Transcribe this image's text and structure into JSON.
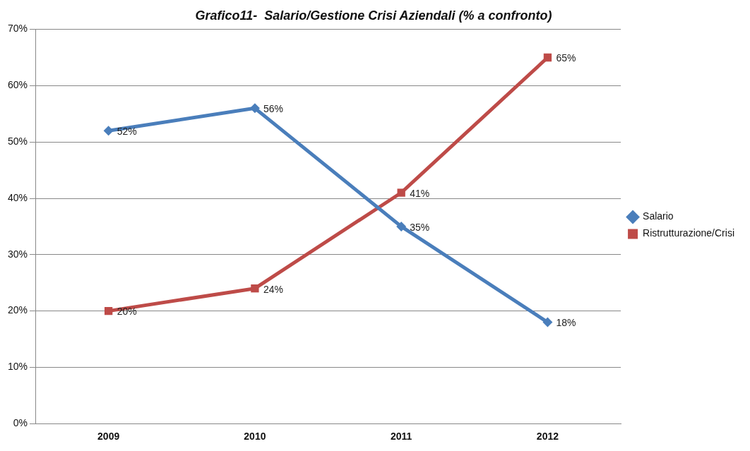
{
  "chart_data": {
    "type": "line",
    "title": "Grafico11-  Salario/Gestione Crisi Aziendali (% a confronto)",
    "categories": [
      "2009",
      "2010",
      "2011",
      "2012"
    ],
    "series": [
      {
        "name": "Salario",
        "color": "#4a7ebb",
        "marker": "diamond",
        "values": [
          52,
          56,
          35,
          18
        ],
        "value_labels": [
          "52%",
          "56%",
          "35%",
          "18%"
        ]
      },
      {
        "name": "Ristrutturazione/Crisi",
        "color": "#be4b48",
        "marker": "square",
        "values": [
          20,
          24,
          41,
          65
        ],
        "value_labels": [
          "20%",
          "24%",
          "41%",
          "65%"
        ]
      }
    ],
    "ylim": [
      0,
      70
    ],
    "yticks": [
      {
        "value": 0,
        "label": "0%"
      },
      {
        "value": 10,
        "label": "10%"
      },
      {
        "value": 20,
        "label": "20%"
      },
      {
        "value": 30,
        "label": "30%"
      },
      {
        "value": 40,
        "label": "40%"
      },
      {
        "value": 50,
        "label": "50%"
      },
      {
        "value": 60,
        "label": "60%"
      },
      {
        "value": 70,
        "label": "70%"
      }
    ],
    "grid": "y",
    "legend": "right",
    "line_style": "solid"
  }
}
